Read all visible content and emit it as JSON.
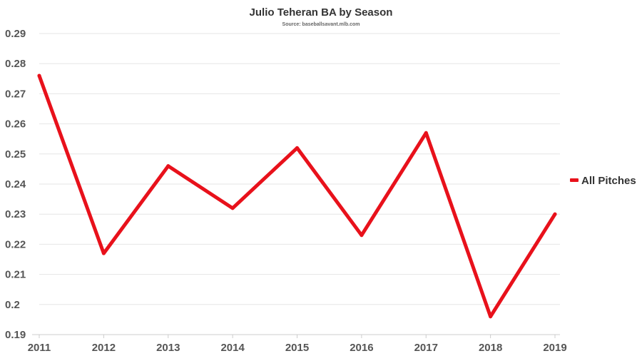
{
  "chart_data": {
    "type": "line",
    "title": "Julio Teheran BA by Season",
    "subtitle": "Source: baseballsavant.mlb.com",
    "xlabel": "",
    "ylabel": "",
    "categories": [
      "2011",
      "2012",
      "2013",
      "2014",
      "2015",
      "2016",
      "2017",
      "2018",
      "2019"
    ],
    "series": [
      {
        "name": "All Pitches",
        "color": "#e8111b",
        "values": [
          0.276,
          0.217,
          0.246,
          0.232,
          0.252,
          0.223,
          0.257,
          0.196,
          0.23
        ]
      }
    ],
    "ylim": [
      0.19,
      0.29
    ],
    "yticks": [
      "0.19",
      "0.2",
      "0.21",
      "0.22",
      "0.23",
      "0.24",
      "0.25",
      "0.26",
      "0.27",
      "0.28",
      "0.29"
    ],
    "grid": true,
    "legend_position": "right"
  }
}
